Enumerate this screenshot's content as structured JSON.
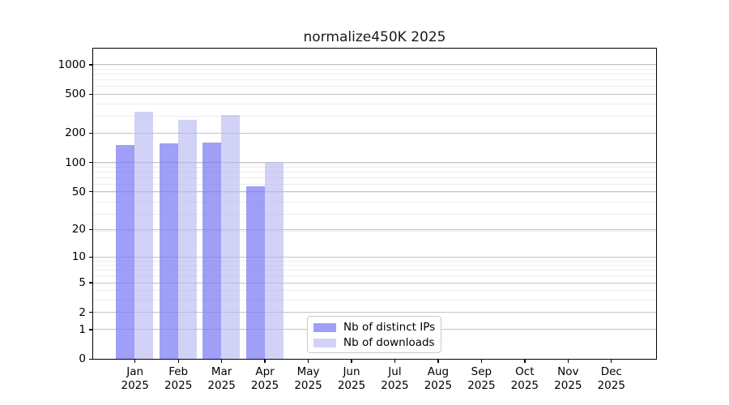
{
  "title": "normalize450K 2025",
  "legend": {
    "items": [
      {
        "label": "Nb of distinct IPs",
        "color": "rgba(124,124,245,0.73)"
      },
      {
        "label": "Nb of downloads",
        "color": "rgba(183,183,242,0.63)"
      }
    ]
  },
  "chart_data": {
    "type": "bar",
    "title": "normalize450K 2025",
    "categories": [
      "Jan 2025",
      "Feb 2025",
      "Mar 2025",
      "Apr 2025",
      "May 2025",
      "Jun 2025",
      "Jul 2025",
      "Aug 2025",
      "Sep 2025",
      "Oct 2025",
      "Nov 2025",
      "Dec 2025"
    ],
    "series": [
      {
        "name": "Nb of distinct IPs",
        "color": "rgba(124,124,245,0.73)",
        "values": [
          150,
          155,
          160,
          56,
          0,
          0,
          0,
          0,
          0,
          0,
          0,
          0
        ]
      },
      {
        "name": "Nb of downloads",
        "color": "rgba(183,183,242,0.63)",
        "values": [
          330,
          270,
          305,
          100,
          0,
          0,
          0,
          0,
          0,
          0,
          0,
          0
        ]
      }
    ],
    "y_ticks": [
      0,
      1,
      2,
      5,
      10,
      20,
      50,
      100,
      200,
      500,
      1000
    ],
    "y_scale": "log10(value+1)",
    "ylim": [
      0,
      1460
    ],
    "xlabel": "",
    "ylabel": "",
    "grid": true,
    "legend_position": "lower center"
  },
  "colors": {
    "major_grid": "#c3c3c3",
    "minor_grid": "#ededed",
    "axis": "#000000",
    "background": "#ffffff"
  }
}
